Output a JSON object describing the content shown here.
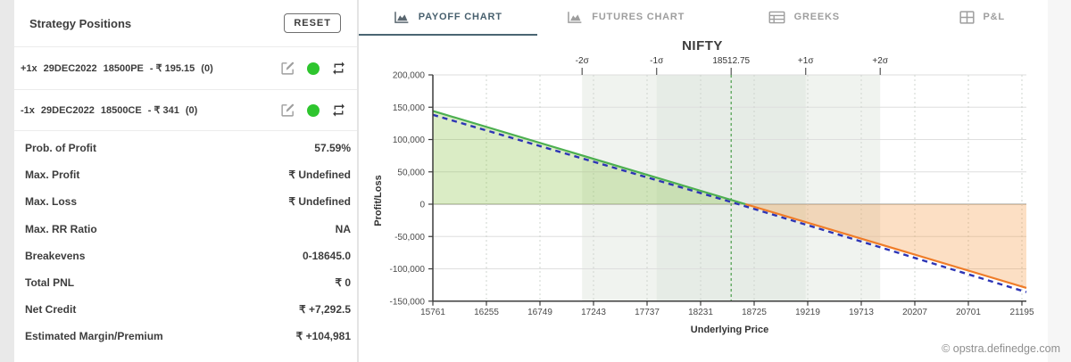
{
  "page": {
    "watermark": "© opstra.definedge.com"
  },
  "ui_colors": {
    "tab_accent": "#4a6572",
    "status_green": "#2ec52e",
    "reset_border": "#6f6f6f"
  },
  "left_panel": {
    "title": "Strategy Positions",
    "reset_label": "RESET",
    "positions": [
      {
        "qty": "+1x",
        "expiry": "29DEC2022",
        "instrument": "18500PE",
        "price": "- ₹ 195.15",
        "lots": "(0)"
      },
      {
        "qty": "-1x",
        "expiry": "29DEC2022",
        "instrument": "18500CE",
        "price": "- ₹ 341",
        "lots": "(0)"
      }
    ],
    "stats": [
      {
        "label": "Prob. of Profit",
        "value": "57.59%"
      },
      {
        "label": "Max. Profit",
        "value": "₹ Undefined"
      },
      {
        "label": "Max. Loss",
        "value": "₹ Undefined"
      },
      {
        "label": "Max. RR Ratio",
        "value": "NA"
      },
      {
        "label": "Breakevens",
        "value": "0-18645.0"
      },
      {
        "label": "Total PNL",
        "value": "₹ 0"
      },
      {
        "label": "Net Credit",
        "value": "₹ +7,292.5"
      },
      {
        "label": "Estimated Margin/Premium",
        "value": "₹ +104,981"
      }
    ]
  },
  "tabs": [
    {
      "label": "PAYOFF CHART",
      "icon": "area-chart-icon",
      "active": true
    },
    {
      "label": "FUTURES CHART",
      "icon": "area-chart-icon",
      "active": false
    },
    {
      "label": "GREEKS",
      "icon": "table-icon",
      "active": false
    },
    {
      "label": "P&L",
      "icon": "grid-icon",
      "active": false
    }
  ],
  "chart_data": {
    "type": "line",
    "title": "NIFTY",
    "xlabel": "Underlying Price",
    "ylabel": "Profit/Loss",
    "x_ticks": [
      15761,
      16255,
      16749,
      17243,
      17737,
      18231,
      18725,
      19219,
      19713,
      20207,
      20701,
      21195
    ],
    "y_ticks": [
      200000,
      150000,
      100000,
      50000,
      0,
      -50000,
      -100000,
      -150000
    ],
    "xlim": [
      15761,
      21236
    ],
    "ylim": [
      -150000,
      200000
    ],
    "grid": true,
    "legend_position": "none",
    "current_price": 18512.75,
    "breakeven": 18645.85,
    "sigma_markers": [
      {
        "label": "-2σ",
        "x": 17137.75
      },
      {
        "label": "-1σ",
        "x": 17825.25
      },
      {
        "label": "18512.75",
        "x": 18512.75
      },
      {
        "label": "+1σ",
        "x": 19200.25
      },
      {
        "label": "+2σ",
        "x": 19887.75
      }
    ],
    "series": [
      {
        "name": "expiry_payoff",
        "style": "solid",
        "x": [
          15761,
          18645.85,
          21236
        ],
        "y": [
          144242,
          0,
          -129508
        ],
        "color_profit": "#4caf50",
        "color_loss": "#ef7c28"
      },
      {
        "name": "t_plus_0",
        "style": "dashed",
        "color": "#2d35b5",
        "x": [
          15761,
          16500,
          17200,
          17900,
          18512.75,
          19200,
          19900,
          20600,
          21236
        ],
        "y": [
          138242,
          102092,
          67792,
          33492,
          3355,
          -31508,
          -67308,
          -103308,
          -136000
        ]
      }
    ],
    "fills": {
      "profit": "rgba(139,195,74,0.32)",
      "loss": "rgba(244,148,58,0.30)"
    },
    "bands": {
      "outer": "#f0f3ef",
      "inner": "#e6ece6"
    },
    "line_colors": {
      "current_price": "#4a9e4a",
      "zero_line": "#b8b8b2",
      "grid": "#dedede",
      "vgrid": "#cfd4cf",
      "axis": "#3c3c3c"
    }
  }
}
